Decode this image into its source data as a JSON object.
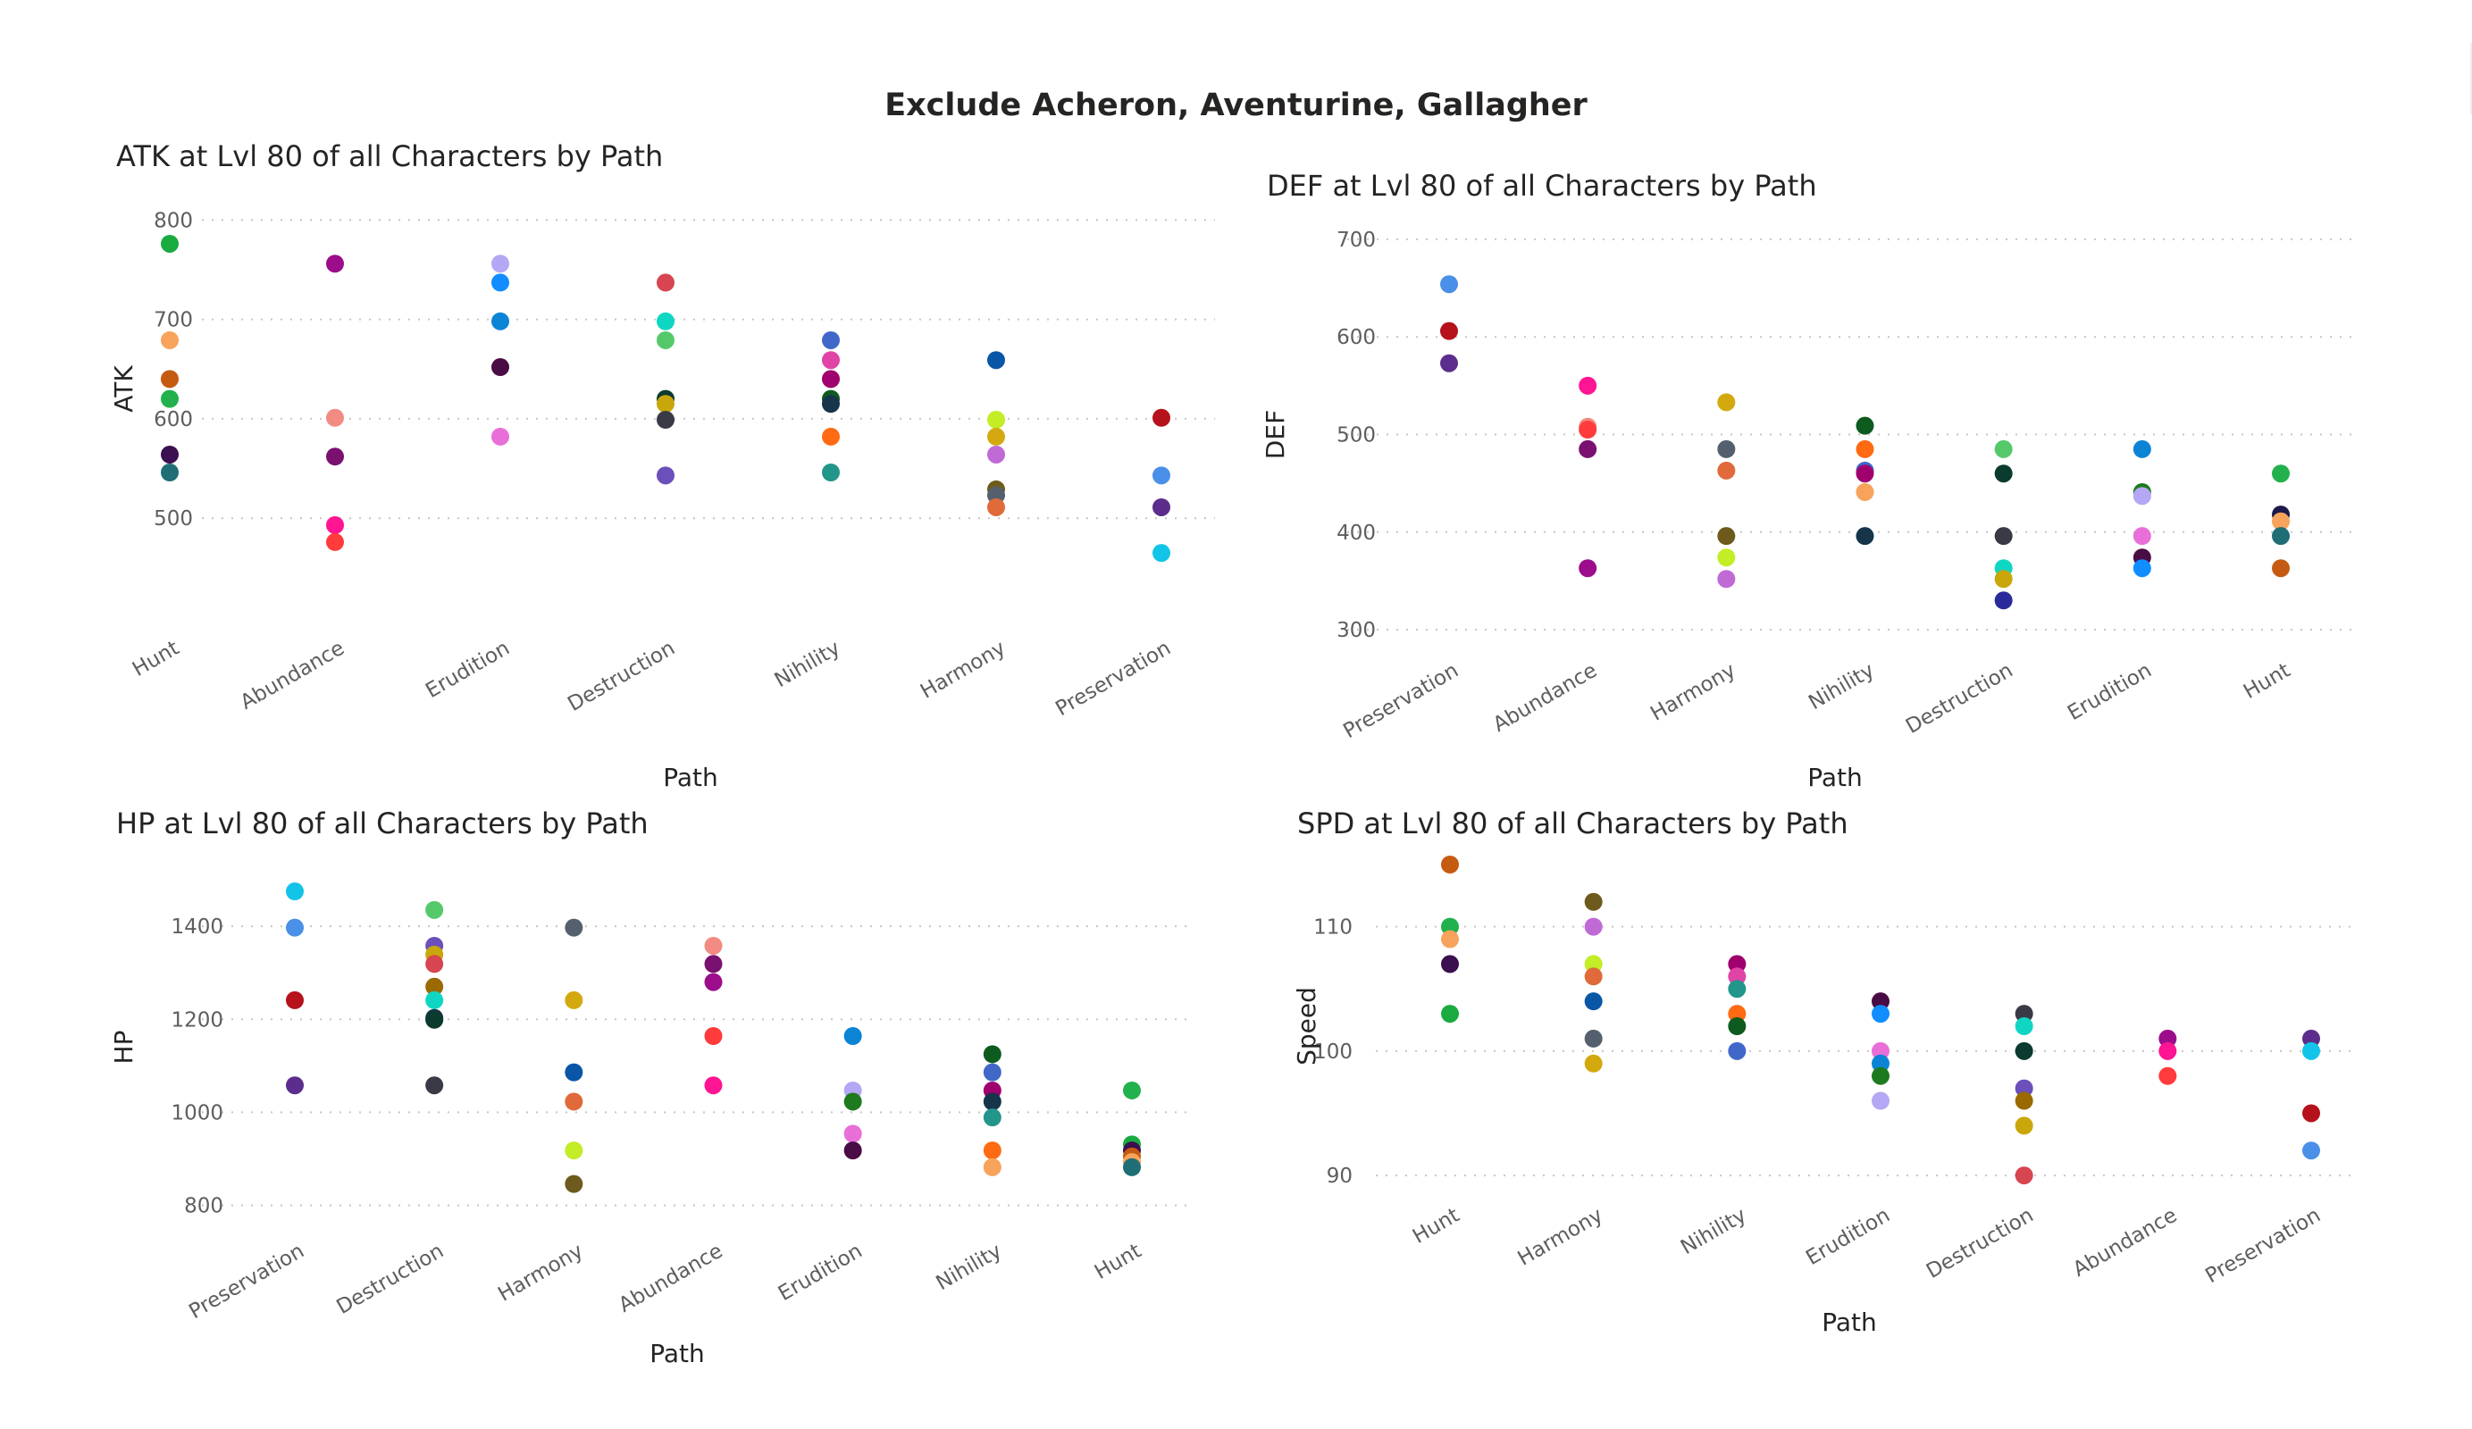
{
  "page": {
    "title": "Exclude Acheron, Aventurine, Gallagher"
  },
  "chart_data": [
    {
      "id": "atk",
      "type": "scatter",
      "title": "ATK at Lvl 80 of all Characters by Path",
      "xlabel": "Path",
      "ylabel": "ATK",
      "ylim": [
        440,
        820
      ],
      "yticks": [
        500,
        600,
        700,
        800
      ],
      "categories": [
        "Hunt",
        "Abundance",
        "Erudition",
        "Destruction",
        "Nihility",
        "Harmony",
        "Preservation"
      ],
      "points": [
        {
          "x": "Hunt",
          "y": 776,
          "color": "#1aab40"
        },
        {
          "x": "Hunt",
          "y": 679,
          "color": "#f7a35c"
        },
        {
          "x": "Hunt",
          "y": 640,
          "color": "#c55a11"
        },
        {
          "x": "Hunt",
          "y": 620,
          "color": "#22b14c"
        },
        {
          "x": "Hunt",
          "y": 564,
          "color": "#3b0f50"
        },
        {
          "x": "Hunt",
          "y": 546,
          "color": "#1f6e75"
        },
        {
          "x": "Abundance",
          "y": 756,
          "color": "#9c0d8c"
        },
        {
          "x": "Abundance",
          "y": 601,
          "color": "#f28b82"
        },
        {
          "x": "Abundance",
          "y": 562,
          "color": "#7a1070"
        },
        {
          "x": "Abundance",
          "y": 493,
          "color": "#ff1493"
        },
        {
          "x": "Abundance",
          "y": 476,
          "color": "#ff3b3b"
        },
        {
          "x": "Erudition",
          "y": 756,
          "color": "#b4a7f5"
        },
        {
          "x": "Erudition",
          "y": 737,
          "color": "#118dff"
        },
        {
          "x": "Erudition",
          "y": 698,
          "color": "#0b84d6"
        },
        {
          "x": "Erudition",
          "y": 652,
          "color": "#4a0c45"
        },
        {
          "x": "Erudition",
          "y": 582,
          "color": "#e96fd8"
        },
        {
          "x": "Destruction",
          "y": 737,
          "color": "#d64550"
        },
        {
          "x": "Destruction",
          "y": 698,
          "color": "#0fd6c2"
        },
        {
          "x": "Destruction",
          "y": 679,
          "color": "#55c96a"
        },
        {
          "x": "Destruction",
          "y": 620,
          "color": "#0b3a2e"
        },
        {
          "x": "Destruction",
          "y": 615,
          "color": "#c9a70a"
        },
        {
          "x": "Destruction",
          "y": 599,
          "color": "#3a3a46"
        },
        {
          "x": "Destruction",
          "y": 543,
          "color": "#6b4fbb"
        },
        {
          "x": "Nihility",
          "y": 679,
          "color": "#4168c9"
        },
        {
          "x": "Nihility",
          "y": 659,
          "color": "#e044a7"
        },
        {
          "x": "Nihility",
          "y": 640,
          "color": "#a0006e"
        },
        {
          "x": "Nihility",
          "y": 620,
          "color": "#0e5b1f"
        },
        {
          "x": "Nihility",
          "y": 615,
          "color": "#16344a"
        },
        {
          "x": "Nihility",
          "y": 582,
          "color": "#ff6a13"
        },
        {
          "x": "Nihility",
          "y": 546,
          "color": "#22968a"
        },
        {
          "x": "Harmony",
          "y": 659,
          "color": "#0a56a6"
        },
        {
          "x": "Harmony",
          "y": 599,
          "color": "#c3ed26"
        },
        {
          "x": "Harmony",
          "y": 582,
          "color": "#d4a90f"
        },
        {
          "x": "Harmony",
          "y": 564,
          "color": "#c06ad6"
        },
        {
          "x": "Harmony",
          "y": 529,
          "color": "#6e5a1c"
        },
        {
          "x": "Harmony",
          "y": 523,
          "color": "#55606e"
        },
        {
          "x": "Harmony",
          "y": 511,
          "color": "#e06a3a"
        },
        {
          "x": "Preservation",
          "y": 601,
          "color": "#b5121b"
        },
        {
          "x": "Preservation",
          "y": 543,
          "color": "#4a8fe8"
        },
        {
          "x": "Preservation",
          "y": 511,
          "color": "#5c2d8c"
        },
        {
          "x": "Preservation",
          "y": 465,
          "color": "#12c4e8"
        }
      ]
    },
    {
      "id": "def",
      "type": "scatter",
      "title": "DEF at Lvl 80 of all Characters by Path",
      "xlabel": "Path",
      "ylabel": "DEF",
      "ylim": [
        290,
        710
      ],
      "yticks": [
        300,
        400,
        500,
        600,
        700
      ],
      "categories": [
        "Preservation",
        "Abundance",
        "Harmony",
        "Nihility",
        "Destruction",
        "Erudition",
        "Hunt"
      ],
      "points": [
        {
          "x": "Preservation",
          "y": 654,
          "color": "#4a8fe8"
        },
        {
          "x": "Preservation",
          "y": 606,
          "color": "#b5121b"
        },
        {
          "x": "Preservation",
          "y": 573,
          "color": "#5c2d8c"
        },
        {
          "x": "Abundance",
          "y": 550,
          "color": "#ff1493"
        },
        {
          "x": "Abundance",
          "y": 508,
          "color": "#f28b82"
        },
        {
          "x": "Abundance",
          "y": 505,
          "color": "#ff3b3b"
        },
        {
          "x": "Abundance",
          "y": 485,
          "color": "#7a1070"
        },
        {
          "x": "Abundance",
          "y": 363,
          "color": "#9c0d8c"
        },
        {
          "x": "Harmony",
          "y": 533,
          "color": "#d4a90f"
        },
        {
          "x": "Harmony",
          "y": 485,
          "color": "#55606e"
        },
        {
          "x": "Harmony",
          "y": 463,
          "color": "#e06a3a"
        },
        {
          "x": "Harmony",
          "y": 396,
          "color": "#6e5a1c"
        },
        {
          "x": "Harmony",
          "y": 374,
          "color": "#c3ed26"
        },
        {
          "x": "Harmony",
          "y": 352,
          "color": "#c06ad6"
        },
        {
          "x": "Nihility",
          "y": 509,
          "color": "#0e5b1f"
        },
        {
          "x": "Nihility",
          "y": 485,
          "color": "#ff6a13"
        },
        {
          "x": "Nihility",
          "y": 463,
          "color": "#4168c9"
        },
        {
          "x": "Nihility",
          "y": 460,
          "color": "#a0006e"
        },
        {
          "x": "Nihility",
          "y": 441,
          "color": "#f7a35c"
        },
        {
          "x": "Nihility",
          "y": 396,
          "color": "#16344a"
        },
        {
          "x": "Destruction",
          "y": 485,
          "color": "#55c96a"
        },
        {
          "x": "Destruction",
          "y": 460,
          "color": "#0b3a2e"
        },
        {
          "x": "Destruction",
          "y": 396,
          "color": "#3a3a46"
        },
        {
          "x": "Destruction",
          "y": 363,
          "color": "#0fd6c2"
        },
        {
          "x": "Destruction",
          "y": 352,
          "color": "#c9a70a"
        },
        {
          "x": "Destruction",
          "y": 330,
          "color": "#2a2a9a"
        },
        {
          "x": "Erudition",
          "y": 485,
          "color": "#0b84d6"
        },
        {
          "x": "Erudition",
          "y": 441,
          "color": "#1e7a1e"
        },
        {
          "x": "Erudition",
          "y": 437,
          "color": "#b4a7f5"
        },
        {
          "x": "Erudition",
          "y": 396,
          "color": "#e96fd8"
        },
        {
          "x": "Erudition",
          "y": 374,
          "color": "#4a0c45"
        },
        {
          "x": "Erudition",
          "y": 363,
          "color": "#118dff"
        },
        {
          "x": "Hunt",
          "y": 460,
          "color": "#22b14c"
        },
        {
          "x": "Hunt",
          "y": 418,
          "color": "#1c1a4a"
        },
        {
          "x": "Hunt",
          "y": 411,
          "color": "#f7a35c"
        },
        {
          "x": "Hunt",
          "y": 396,
          "color": "#1f6e75"
        },
        {
          "x": "Hunt",
          "y": 363,
          "color": "#c55a11"
        }
      ]
    },
    {
      "id": "hp",
      "type": "scatter",
      "title": "HP at Lvl 80 of all Characters by Path",
      "xlabel": "Path",
      "ylabel": "HP",
      "ylim": [
        780,
        1500
      ],
      "yticks": [
        800,
        1000,
        1200,
        1400
      ],
      "categories": [
        "Preservation",
        "Destruction",
        "Harmony",
        "Abundance",
        "Erudition",
        "Nihility",
        "Hunt"
      ],
      "points": [
        {
          "x": "Preservation",
          "y": 1475,
          "color": "#12c4e8"
        },
        {
          "x": "Preservation",
          "y": 1397,
          "color": "#4a8fe8"
        },
        {
          "x": "Preservation",
          "y": 1241,
          "color": "#b5121b"
        },
        {
          "x": "Preservation",
          "y": 1058,
          "color": "#5c2d8c"
        },
        {
          "x": "Destruction",
          "y": 1435,
          "color": "#55c96a"
        },
        {
          "x": "Destruction",
          "y": 1358,
          "color": "#6b4fbb"
        },
        {
          "x": "Destruction",
          "y": 1339,
          "color": "#c9a70a"
        },
        {
          "x": "Destruction",
          "y": 1319,
          "color": "#d64550"
        },
        {
          "x": "Destruction",
          "y": 1270,
          "color": "#9a6a00"
        },
        {
          "x": "Destruction",
          "y": 1241,
          "color": "#0fd6c2"
        },
        {
          "x": "Destruction",
          "y": 1203,
          "color": "#16344a"
        },
        {
          "x": "Destruction",
          "y": 1199,
          "color": "#0b3a2e"
        },
        {
          "x": "Destruction",
          "y": 1058,
          "color": "#3a3a46"
        },
        {
          "x": "Harmony",
          "y": 1397,
          "color": "#55606e"
        },
        {
          "x": "Harmony",
          "y": 1241,
          "color": "#d4a90f"
        },
        {
          "x": "Harmony",
          "y": 1086,
          "color": "#0a56a6"
        },
        {
          "x": "Harmony",
          "y": 1023,
          "color": "#e06a3a"
        },
        {
          "x": "Harmony",
          "y": 918,
          "color": "#c3ed26"
        },
        {
          "x": "Harmony",
          "y": 846,
          "color": "#6e5a1c"
        },
        {
          "x": "Abundance",
          "y": 1358,
          "color": "#f28b82"
        },
        {
          "x": "Abundance",
          "y": 1319,
          "color": "#7a1070"
        },
        {
          "x": "Abundance",
          "y": 1280,
          "color": "#9c0d8c"
        },
        {
          "x": "Abundance",
          "y": 1164,
          "color": "#ff3b3b"
        },
        {
          "x": "Abundance",
          "y": 1058,
          "color": "#ff1493"
        },
        {
          "x": "Erudition",
          "y": 1164,
          "color": "#0b84d6"
        },
        {
          "x": "Erudition",
          "y": 1047,
          "color": "#b4a7f5"
        },
        {
          "x": "Erudition",
          "y": 1023,
          "color": "#1e7a1e"
        },
        {
          "x": "Erudition",
          "y": 954,
          "color": "#e96fd8"
        },
        {
          "x": "Erudition",
          "y": 918,
          "color": "#4a0c45"
        },
        {
          "x": "Nihility",
          "y": 1125,
          "color": "#0e5b1f"
        },
        {
          "x": "Nihility",
          "y": 1086,
          "color": "#4168c9"
        },
        {
          "x": "Nihility",
          "y": 1047,
          "color": "#a0006e"
        },
        {
          "x": "Nihility",
          "y": 1023,
          "color": "#16344a"
        },
        {
          "x": "Nihility",
          "y": 989,
          "color": "#22968a"
        },
        {
          "x": "Nihility",
          "y": 918,
          "color": "#ff6a13"
        },
        {
          "x": "Nihility",
          "y": 882,
          "color": "#f7a35c"
        },
        {
          "x": "Hunt",
          "y": 1047,
          "color": "#22b14c"
        },
        {
          "x": "Hunt",
          "y": 931,
          "color": "#1aab40"
        },
        {
          "x": "Hunt",
          "y": 918,
          "color": "#3b0f50"
        },
        {
          "x": "Hunt",
          "y": 905,
          "color": "#c55a11"
        },
        {
          "x": "Hunt",
          "y": 893,
          "color": "#f7a35c"
        },
        {
          "x": "Hunt",
          "y": 882,
          "color": "#1f6e75"
        }
      ]
    },
    {
      "id": "spd",
      "type": "scatter",
      "title": "SPD at Lvl 80 of all Characters by Path",
      "xlabel": "Path",
      "ylabel": "Speed",
      "ylim": [
        89,
        115
      ],
      "yticks": [
        90,
        100,
        110
      ],
      "categories": [
        "Hunt",
        "Harmony",
        "Nihility",
        "Erudition",
        "Destruction",
        "Abundance",
        "Preservation"
      ],
      "points": [
        {
          "x": "Hunt",
          "y": 115,
          "color": "#c55a11"
        },
        {
          "x": "Hunt",
          "y": 110,
          "color": "#22b14c"
        },
        {
          "x": "Hunt",
          "y": 109,
          "color": "#f7a35c"
        },
        {
          "x": "Hunt",
          "y": 107,
          "color": "#3b0f50"
        },
        {
          "x": "Hunt",
          "y": 103,
          "color": "#1aab40"
        },
        {
          "x": "Harmony",
          "y": 112,
          "color": "#6e5a1c"
        },
        {
          "x": "Harmony",
          "y": 110,
          "color": "#c06ad6"
        },
        {
          "x": "Harmony",
          "y": 107,
          "color": "#c3ed26"
        },
        {
          "x": "Harmony",
          "y": 106,
          "color": "#e06a3a"
        },
        {
          "x": "Harmony",
          "y": 104,
          "color": "#0a56a6"
        },
        {
          "x": "Harmony",
          "y": 101,
          "color": "#55606e"
        },
        {
          "x": "Harmony",
          "y": 99,
          "color": "#d4a90f"
        },
        {
          "x": "Nihility",
          "y": 107,
          "color": "#a0006e"
        },
        {
          "x": "Nihility",
          "y": 106,
          "color": "#e044a7"
        },
        {
          "x": "Nihility",
          "y": 105,
          "color": "#22968a"
        },
        {
          "x": "Nihility",
          "y": 103,
          "color": "#ff6a13"
        },
        {
          "x": "Nihility",
          "y": 102,
          "color": "#0e5b1f"
        },
        {
          "x": "Nihility",
          "y": 100,
          "color": "#4168c9"
        },
        {
          "x": "Erudition",
          "y": 104,
          "color": "#4a0c45"
        },
        {
          "x": "Erudition",
          "y": 103,
          "color": "#118dff"
        },
        {
          "x": "Erudition",
          "y": 100,
          "color": "#e96fd8"
        },
        {
          "x": "Erudition",
          "y": 99,
          "color": "#0b84d6"
        },
        {
          "x": "Erudition",
          "y": 98,
          "color": "#1e7a1e"
        },
        {
          "x": "Erudition",
          "y": 96,
          "color": "#b4a7f5"
        },
        {
          "x": "Destruction",
          "y": 103,
          "color": "#3a3a46"
        },
        {
          "x": "Destruction",
          "y": 102,
          "color": "#0fd6c2"
        },
        {
          "x": "Destruction",
          "y": 100,
          "color": "#0b3a2e"
        },
        {
          "x": "Destruction",
          "y": 97,
          "color": "#6b4fbb"
        },
        {
          "x": "Destruction",
          "y": 96,
          "color": "#9a6a00"
        },
        {
          "x": "Destruction",
          "y": 94,
          "color": "#c9a70a"
        },
        {
          "x": "Destruction",
          "y": 90,
          "color": "#d64550"
        },
        {
          "x": "Abundance",
          "y": 101,
          "color": "#9c0d8c"
        },
        {
          "x": "Abundance",
          "y": 100,
          "color": "#ff1493"
        },
        {
          "x": "Abundance",
          "y": 98,
          "color": "#ff3b3b"
        },
        {
          "x": "Preservation",
          "y": 101,
          "color": "#5c2d8c"
        },
        {
          "x": "Preservation",
          "y": 100,
          "color": "#12c4e8"
        },
        {
          "x": "Preservation",
          "y": 95,
          "color": "#b5121b"
        },
        {
          "x": "Preservation",
          "y": 92,
          "color": "#4a8fe8"
        }
      ]
    }
  ]
}
